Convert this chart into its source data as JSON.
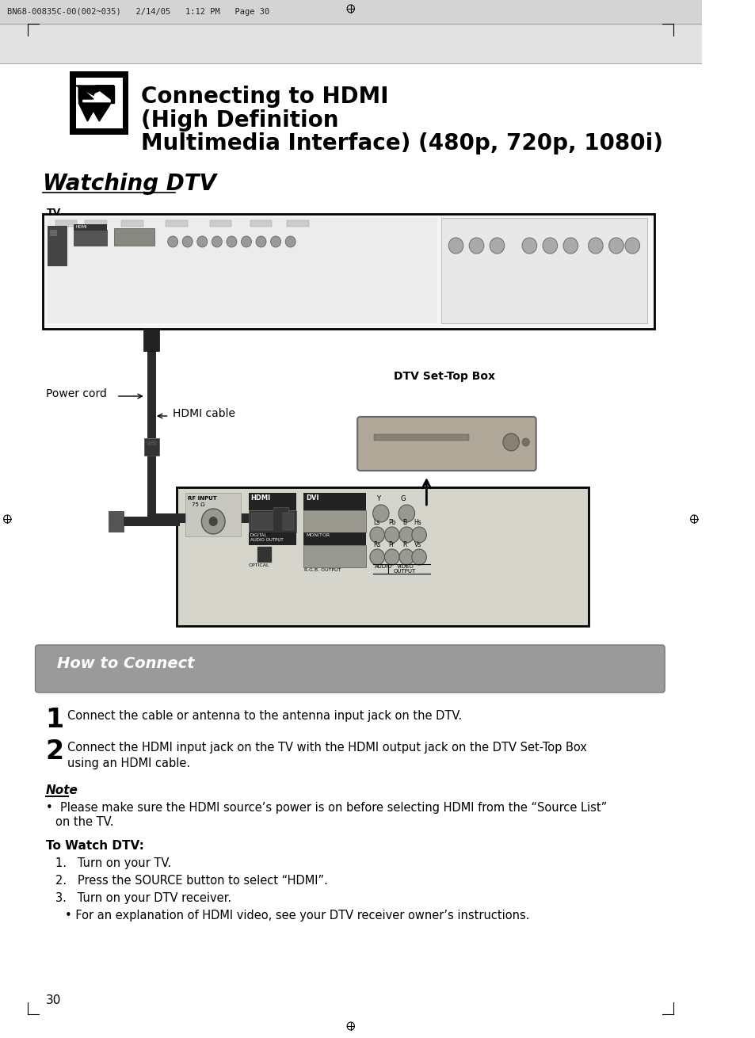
{
  "page_header": "BN68-00835C-00(002~035)   2/14/05   1:12 PM   Page 30",
  "title_bold": "Connecting to HDMI",
  "title_normal_line2": "Multimedia Interface) (480p, 720p, 1080i)",
  "section_title": "Watching DTV",
  "tv_label": "TV",
  "power_cord_label": "Power cord",
  "hdmi_cable_label": "HDMI cable",
  "dtv_box_label": "DTV Set-Top Box",
  "how_to_connect_title": "How to Connect",
  "step1": "Connect the cable or antenna to the antenna input jack on the DTV.",
  "step2_line1": "Connect the HDMI input jack on the TV with the HDMI output jack on the DTV Set-Top Box",
  "step2_line2": "using an HDMI cable.",
  "note_title": "Note",
  "note_bullet": "Please make sure the HDMI source’s power is on before selecting HDMI from the “Source List”",
  "note_bullet2": "on the TV.",
  "watch_dtv_title": "To Watch DTV:",
  "watch_step1": "Turn on your TV.",
  "watch_step2": "Press the SOURCE button to select “HDMI”.",
  "watch_step3a": "Turn on your DTV receiver.",
  "watch_step3b": "• For an explanation of HDMI video, see your DTV receiver owner’s instructions.",
  "page_number": "30",
  "bg_color": "#ffffff"
}
